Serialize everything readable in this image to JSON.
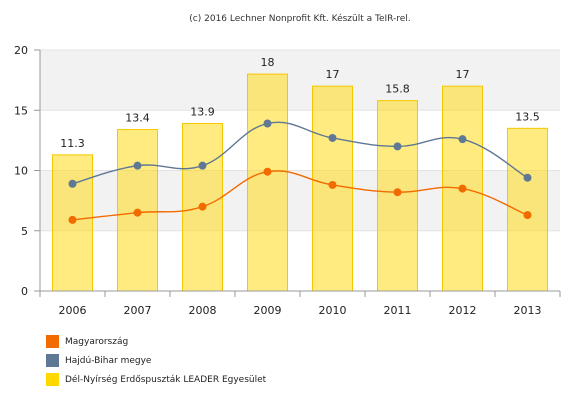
{
  "chart_data": {
    "type": "bar",
    "title": "(c) 2016 Lechner Nonprofit Kft. Készült a TeIR-rel.",
    "categories": [
      "2006",
      "2007",
      "2008",
      "2009",
      "2010",
      "2011",
      "2012",
      "2013"
    ],
    "ylim": [
      0,
      20
    ],
    "yticks": [
      0,
      5,
      10,
      15,
      20
    ],
    "grid": true,
    "legend_position": "bottom-left",
    "series": [
      {
        "name": "Magyarország",
        "kind": "line",
        "color": "#f26b00",
        "values": [
          5.9,
          6.5,
          7.0,
          9.9,
          8.8,
          8.2,
          8.5,
          6.3
        ]
      },
      {
        "name": "Hajdú-Bihar megye",
        "kind": "line",
        "color": "#5f7894",
        "values": [
          8.9,
          10.4,
          10.4,
          13.9,
          12.7,
          12.0,
          12.6,
          9.4
        ]
      },
      {
        "name": "Dél-Nyírség Erdőspuszták LEADER Egyesület",
        "kind": "bar",
        "color": "#ffd800",
        "values": [
          11.3,
          13.4,
          13.9,
          18,
          17,
          15.8,
          17,
          13.5
        ],
        "labels": [
          "11.3",
          "13.4",
          "13.9",
          "18",
          "17",
          "15.8",
          "17",
          "13.5"
        ]
      }
    ]
  }
}
